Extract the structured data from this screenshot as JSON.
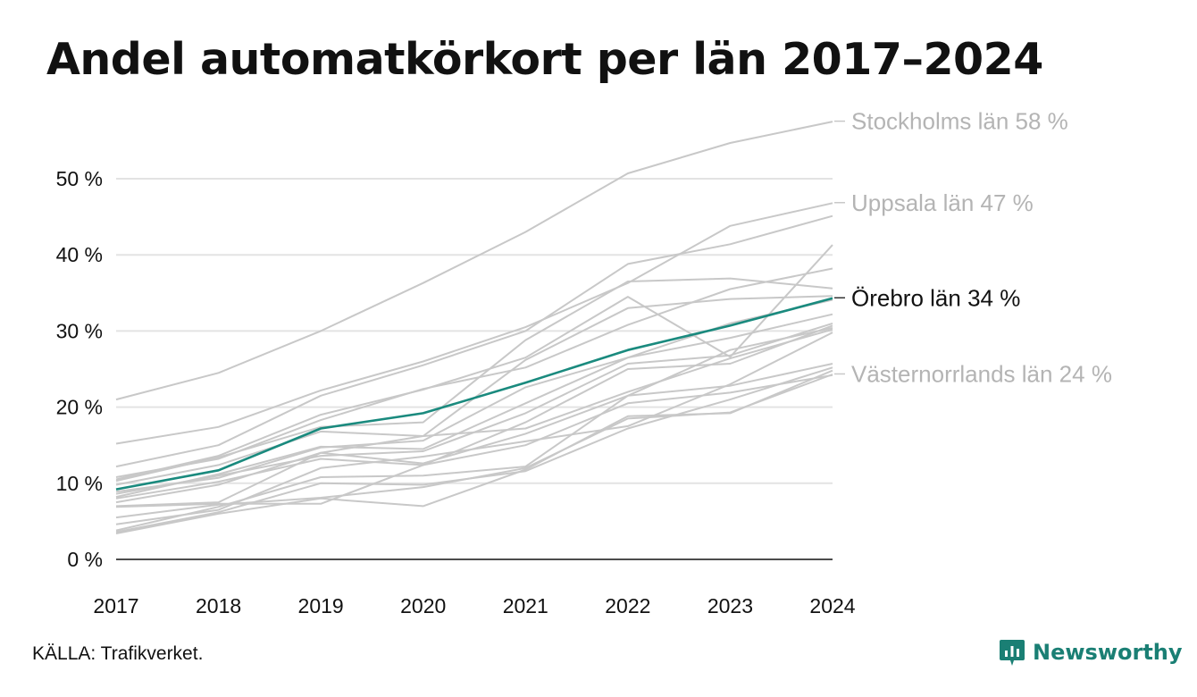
{
  "title": "Andel automatkörkort per län 2017–2024",
  "source": "KÄLLA: Trafikverket.",
  "brand": {
    "name": "Newsworthy"
  },
  "colors": {
    "highlight": "#1a8a7e",
    "background_series": "#c8c8c8",
    "grid": "#e3e3e3",
    "axis": "#111111",
    "label_gray": "#b4b4b4",
    "brand": "#1a7f74"
  },
  "chart_data": {
    "type": "line",
    "x": [
      "2017",
      "2018",
      "2019",
      "2020",
      "2021",
      "2022",
      "2023",
      "2024"
    ],
    "ylim": [
      0,
      58
    ],
    "yticks": [
      0,
      10,
      20,
      30,
      40,
      50
    ],
    "ytick_labels": [
      "0 %",
      "10 %",
      "20 %",
      "30 %",
      "40 %",
      "50 %"
    ],
    "grid": true,
    "series": [
      {
        "name": "Stockholms län",
        "label": "Stockholms län 58 %",
        "highlight": false,
        "values": [
          21,
          24.5,
          30,
          36.3,
          43,
          50.7,
          54.7,
          57.5
        ]
      },
      {
        "name": "Uppsala län",
        "label": "Uppsala län 47 %",
        "highlight": false,
        "values": [
          15.2,
          17.4,
          22.2,
          26,
          30.5,
          36.3,
          43.8,
          46.8
        ]
      },
      {
        "name": "Örebro län",
        "label": "Örebro län 34 %",
        "highlight": true,
        "values": [
          9.2,
          11.7,
          17.2,
          19.2,
          23.2,
          27.5,
          30.7,
          34.3
        ]
      },
      {
        "name": "Västernorrlands län",
        "label": "Västernorrlands län 24 %",
        "highlight": false,
        "values": [
          5.5,
          7.2,
          8.1,
          9.5,
          12,
          18.5,
          19.3,
          24.3
        ]
      },
      {
        "values": [
          12.2,
          15,
          21.5,
          25.5,
          30,
          38.8,
          41.4,
          45.1
        ]
      },
      {
        "values": [
          10.5,
          13.6,
          19,
          22.3,
          26.5,
          34.5,
          26.6,
          41.3
        ]
      },
      {
        "values": [
          10.8,
          13.2,
          18.3,
          22.4,
          25.2,
          30.8,
          35.5,
          38.2
        ]
      },
      {
        "values": [
          10.3,
          13.4,
          17.4,
          18,
          28.8,
          36.5,
          36.9,
          35.6
        ]
      },
      {
        "values": [
          9.8,
          12.4,
          16.8,
          16.2,
          26.2,
          33,
          34.2,
          34.6
        ]
      },
      {
        "values": [
          8.9,
          10.7,
          14.7,
          15.6,
          22.6,
          26.5,
          31,
          34.1
        ]
      },
      {
        "values": [
          8.2,
          11.2,
          14.8,
          14.5,
          20.5,
          26.5,
          29.1,
          32.2
        ]
      },
      {
        "values": [
          8.6,
          11,
          13.6,
          14.2,
          19.2,
          25.7,
          26.8,
          31
        ]
      },
      {
        "values": [
          8,
          10.2,
          13.2,
          12.4,
          18,
          25,
          25.7,
          30.7
        ]
      },
      {
        "values": [
          7.5,
          9.8,
          14,
          12.6,
          16.5,
          21.5,
          27.5,
          30.4
        ]
      },
      {
        "values": [
          7,
          7.5,
          14,
          16.2,
          17.2,
          22,
          26.4,
          30.2
        ]
      },
      {
        "values": [
          4.6,
          6.5,
          12,
          13.5,
          15.5,
          17.5,
          23,
          29.8
        ]
      },
      {
        "values": [
          3.8,
          6.9,
          10.8,
          11,
          12.2,
          21.5,
          22.8,
          25.7
        ]
      },
      {
        "values": [
          3.4,
          6,
          8,
          7,
          11.8,
          18.8,
          19.2,
          24.8
        ]
      },
      {
        "values": [
          3.6,
          6.2,
          10,
          9.8,
          11.6,
          17.2,
          21,
          25.2
        ]
      },
      {
        "values": [
          6.9,
          7.3,
          7.3,
          12.4,
          15,
          20.5,
          21.9,
          24.2
        ]
      }
    ]
  }
}
